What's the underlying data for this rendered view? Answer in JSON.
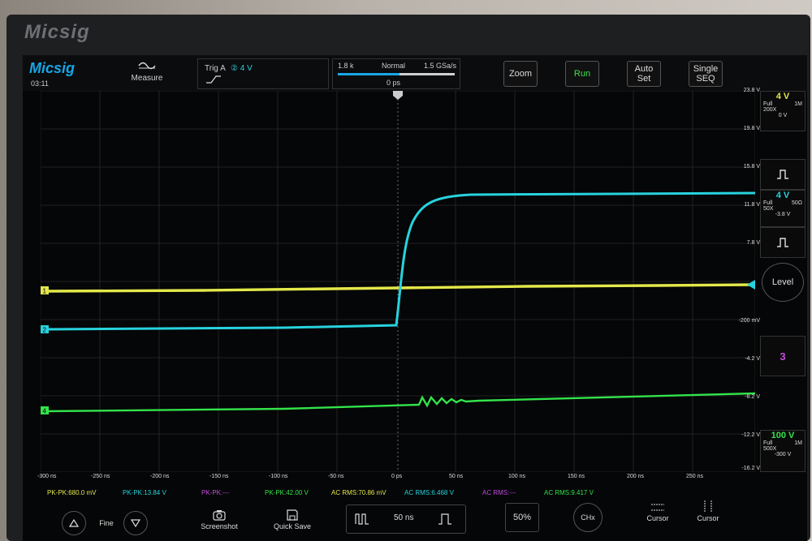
{
  "device": {
    "brand": "Micsig"
  },
  "topbar": {
    "logo": "Micsig",
    "time": "03:11",
    "measure_label": "Measure",
    "trigger": {
      "label": "Trig A",
      "source": "②",
      "level": "4 V"
    },
    "timebase": {
      "memory": "1.8 k",
      "mode": "Normal",
      "sample_rate": "1.5 GSa/s",
      "offset": "0 ps"
    },
    "buttons": {
      "zoom": "Zoom",
      "run": "Run",
      "auto_set": "Auto Set",
      "single_seq": "Single SEQ"
    }
  },
  "colors": {
    "ch1": "#e3e84a",
    "ch2": "#27d3de",
    "ch3": "#c44de0",
    "ch4": "#33e34a",
    "accent": "#19a6e6"
  },
  "channel_markers": [
    "1",
    "2",
    "4"
  ],
  "right_axis": [
    "23.8 V",
    "19.8 V",
    "15.8 V",
    "11.8 V",
    "7.8 V",
    "-200 mV",
    "-4.2 V",
    "-8.2 V",
    "-12.2 V",
    "-16.2 V"
  ],
  "time_ticks": [
    "-300 ns",
    "-250 ns",
    "-200 ns",
    "-150 ns",
    "-100 ns",
    "-50 ns",
    "0 ps",
    "50 ns",
    "100 ns",
    "150 ns",
    "200 ns",
    "250 ns"
  ],
  "right_panel": {
    "ch1": {
      "scale": "4 V",
      "bw": "Full",
      "imp": "1M",
      "probe": "200X",
      "offset": "0 V"
    },
    "ch2": {
      "scale": "4 V",
      "bw": "Full",
      "imp": "50Ω",
      "probe": "50X",
      "offset": "-3.8 V"
    },
    "level_label": "Level",
    "ch3_label": "3",
    "ch4": {
      "scale": "100 V",
      "bw": "Full",
      "imp": "1M",
      "probe": "500X",
      "offset": "-300 V"
    }
  },
  "measurements": [
    "PK-PK:680.0 mV",
    "PK-PK:13.84 V",
    "PK-PK:---",
    "PK-PK:42.00 V",
    "AC RMS:70.86 mV",
    "AC RMS:6.468 V",
    "AC RMS:---",
    "AC RMS:9.417 V"
  ],
  "bottom": {
    "fine_label": "Fine",
    "screenshot_label": "Screenshot",
    "quick_save_label": "Quick Save",
    "timebase_value": "50 ns",
    "percent": "50%",
    "chx": "CHx",
    "cursor1": "Cursor",
    "cursor2": "Cursor"
  }
}
